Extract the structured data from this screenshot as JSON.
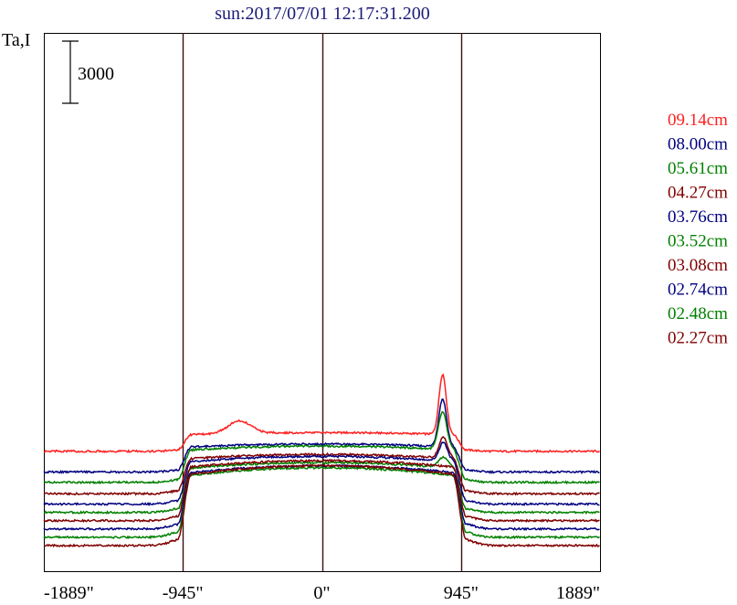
{
  "chart_data": {
    "type": "line",
    "title": "sun:2017/07/01 12:17:31.200",
    "ylabel": "Ta,I",
    "scale_bar_label": "3000",
    "scale_bar_value": 3000,
    "x_ticks": [
      {
        "value": -1889,
        "label": "-1889\""
      },
      {
        "value": -945,
        "label": "-945\""
      },
      {
        "value": 0,
        "label": "0\""
      },
      {
        "value": 945,
        "label": "945\""
      },
      {
        "value": 1889,
        "label": "1889\""
      }
    ],
    "xlim": [
      -1889,
      1889
    ],
    "limb_markers": [
      -945,
      0,
      945
    ],
    "grid": false,
    "legend_placement": "right",
    "series": [
      {
        "name": "09.14cm",
        "color": "#ff2020",
        "quiet": 4950,
        "disk": 5850,
        "limb_peak": 2900,
        "peak_pos": 820,
        "peak_width": 35,
        "shoulder": 600
      },
      {
        "name": "08.00cm",
        "color": "#000080",
        "quiet": 3950,
        "disk": 5300,
        "limb_peak": 2300,
        "peak_pos": 820,
        "peak_width": 38,
        "shoulder": 0
      },
      {
        "name": "05.61cm",
        "color": "#008000",
        "quiet": 3450,
        "disk": 5200,
        "limb_peak": 1800,
        "peak_pos": 820,
        "peak_width": 40,
        "shoulder": 0
      },
      {
        "name": "04.27cm",
        "color": "#800000",
        "quiet": 2900,
        "disk": 4800,
        "limb_peak": 1000,
        "peak_pos": 825,
        "peak_width": 40,
        "shoulder": 0
      },
      {
        "name": "03.76cm",
        "color": "#000080",
        "quiet": 2400,
        "disk": 4700,
        "limb_peak": 900,
        "peak_pos": 825,
        "peak_width": 40,
        "shoulder": 0
      },
      {
        "name": "03.52cm",
        "color": "#008000",
        "quiet": 2000,
        "disk": 4400,
        "limb_peak": 500,
        "peak_pos": 825,
        "peak_width": 45,
        "shoulder": 0
      },
      {
        "name": "03.08cm",
        "color": "#800000",
        "quiet": 1600,
        "disk": 4500,
        "limb_peak": 0,
        "peak_pos": 825,
        "peak_width": 45,
        "shoulder": 0
      },
      {
        "name": "02.74cm",
        "color": "#000080",
        "quiet": 1200,
        "disk": 4250,
        "limb_peak": 0,
        "peak_pos": 825,
        "peak_width": 45,
        "shoulder": 0
      },
      {
        "name": "02.48cm",
        "color": "#008000",
        "quiet": 800,
        "disk": 4150,
        "limb_peak": 0,
        "peak_pos": 825,
        "peak_width": 45,
        "shoulder": 0
      },
      {
        "name": "02.27cm",
        "color": "#800000",
        "quiet": 400,
        "disk": 4250,
        "limb_peak": 0,
        "peak_pos": 825,
        "peak_width": 45,
        "shoulder": 0
      }
    ]
  }
}
